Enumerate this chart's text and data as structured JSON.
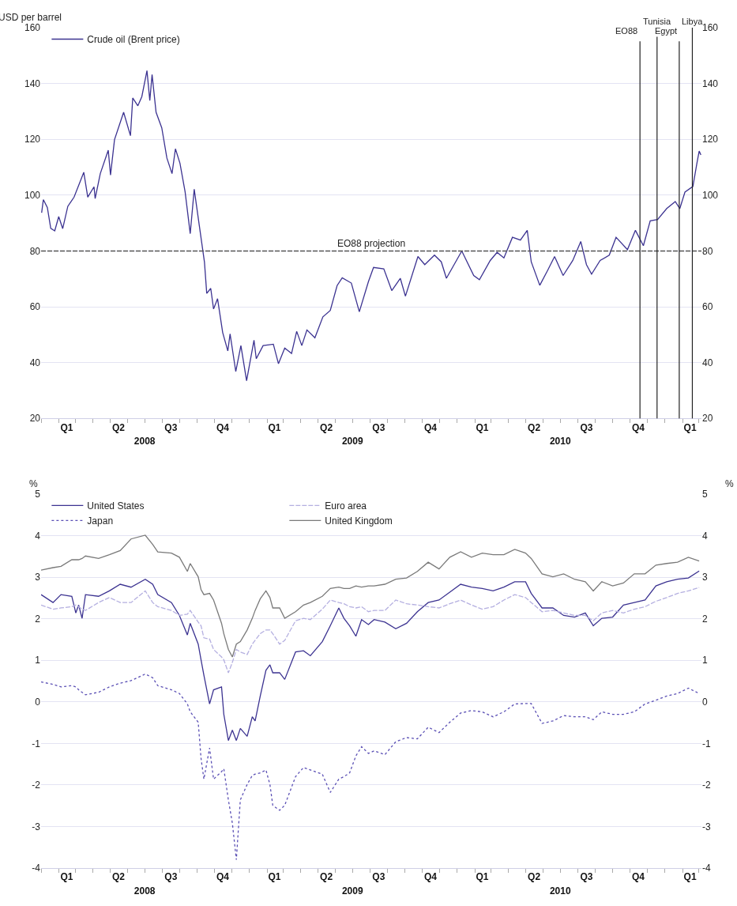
{
  "chart_data": [
    {
      "type": "line",
      "ylabel": "USD per barrel",
      "x": [
        "2008-01-02",
        "2008-01-05",
        "2008-01-12",
        "2008-01-18",
        "2008-01-25",
        "2008-02-01",
        "2008-02-08",
        "2008-02-17",
        "2008-02-28",
        "2008-03-16",
        "2008-03-23",
        "2008-04-03",
        "2008-04-05",
        "2008-04-14",
        "2008-04-28",
        "2008-05-02",
        "2008-05-09",
        "2008-05-25",
        "2008-06-06",
        "2008-06-10",
        "2008-06-19",
        "2008-06-26",
        "2008-07-05",
        "2008-07-10",
        "2008-07-14",
        "2008-07-21",
        "2008-07-31",
        "2008-08-09",
        "2008-08-18",
        "2008-08-24",
        "2008-09-01",
        "2008-09-10",
        "2008-09-19",
        "2008-09-26",
        "2008-10-05",
        "2008-10-14",
        "2008-10-18",
        "2008-10-25",
        "2008-10-30",
        "2008-11-06",
        "2008-11-15",
        "2008-11-24",
        "2008-11-28",
        "2008-12-08",
        "2008-12-17",
        "2008-12-27",
        "2009-01-09",
        "2009-01-13",
        "2009-01-25",
        "2009-02-12",
        "2009-02-21",
        "2009-03-04",
        "2009-03-16",
        "2009-03-25",
        "2009-04-03",
        "2009-04-12",
        "2009-04-26",
        "2009-05-10",
        "2009-05-23",
        "2009-06-04",
        "2009-06-13",
        "2009-06-29",
        "2009-07-13",
        "2009-07-29",
        "2009-08-07",
        "2009-08-25",
        "2009-09-08",
        "2009-09-23",
        "2009-10-02",
        "2009-10-24",
        "2009-11-05",
        "2009-11-22",
        "2009-12-04",
        "2009-12-13",
        "2010-01-09",
        "2010-01-30",
        "2010-02-09",
        "2010-02-28",
        "2010-03-12",
        "2010-03-24",
        "2010-04-08",
        "2010-04-22",
        "2010-05-04",
        "2010-05-11",
        "2010-05-26",
        "2010-06-09",
        "2010-06-21",
        "2010-07-06",
        "2010-07-23",
        "2010-08-06",
        "2010-08-16",
        "2010-08-25",
        "2010-09-09",
        "2010-09-25",
        "2010-10-07",
        "2010-10-27",
        "2010-11-10",
        "2010-11-24",
        "2010-12-06",
        "2010-12-19",
        "2011-01-04",
        "2011-01-19",
        "2011-01-27",
        "2011-02-05",
        "2011-02-19",
        "2011-02-26",
        "2011-03-02",
        "2011-03-05"
      ],
      "series": [
        {
          "name": "Crude oil (Brent price)",
          "color": "#3c3391",
          "line_style": "solid",
          "values": [
            93.7,
            98.4,
            95.6,
            88.1,
            87.2,
            92.3,
            88.0,
            96.0,
            99.3,
            108.2,
            99.3,
            103.0,
            98.8,
            107.7,
            116.1,
            107.2,
            119.9,
            129.7,
            121.3,
            134.8,
            132.0,
            135.3,
            144.6,
            133.9,
            143.2,
            129.7,
            124.1,
            113.3,
            107.7,
            116.6,
            111.4,
            101.2,
            86.2,
            102.1,
            89.0,
            76.0,
            64.8,
            66.6,
            59.2,
            62.9,
            50.8,
            44.2,
            50.3,
            36.8,
            46.1,
            33.5,
            48.0,
            41.4,
            46.1,
            46.6,
            39.6,
            45.2,
            43.3,
            51.2,
            46.1,
            51.7,
            48.9,
            56.4,
            58.7,
            67.6,
            70.4,
            68.5,
            58.2,
            69.0,
            74.1,
            73.6,
            65.8,
            70.2,
            63.8,
            78.0,
            75.1,
            78.5,
            76.1,
            70.2,
            80.0,
            71.2,
            69.7,
            76.6,
            79.5,
            77.5,
            84.9,
            83.9,
            87.4,
            76.1,
            67.7,
            73.1,
            78.0,
            71.2,
            76.6,
            83.4,
            75.1,
            71.7,
            76.6,
            78.5,
            84.9,
            80.5,
            87.4,
            81.9,
            90.8,
            91.3,
            95.2,
            97.7,
            95.2,
            101.1,
            103.1,
            111.4,
            115.8,
            114.4
          ]
        }
      ],
      "xlim": [
        "2008-01-01",
        "2011-03-06"
      ],
      "xticks": [
        {
          "value": "2008-02-15",
          "label": "Q1"
        },
        {
          "value": "2008-05-16",
          "label": "Q2"
        },
        {
          "value": "2008-08-16",
          "label": "Q3"
        },
        {
          "value": "2008-11-15",
          "label": "Q4"
        },
        {
          "value": "2009-02-14",
          "label": "Q1"
        },
        {
          "value": "2009-05-16",
          "label": "Q2"
        },
        {
          "value": "2009-08-16",
          "label": "Q3"
        },
        {
          "value": "2009-11-15",
          "label": "Q4"
        },
        {
          "value": "2010-02-14",
          "label": "Q1"
        },
        {
          "value": "2010-05-16",
          "label": "Q2"
        },
        {
          "value": "2010-08-16",
          "label": "Q3"
        },
        {
          "value": "2010-11-15",
          "label": "Q4"
        },
        {
          "value": "2011-02-14",
          "label": "Q1"
        }
      ],
      "x2lim": [
        "2008-01-01",
        "2011-03-06"
      ],
      "x2ticks": [
        {
          "value": "2008-07-01",
          "label": "2008"
        },
        {
          "value": "2009-07-01",
          "label": "2009"
        },
        {
          "value": "2010-07-01",
          "label": "2010"
        }
      ],
      "ylim": [
        20,
        160
      ],
      "yticks": [
        20,
        40,
        60,
        80,
        100,
        120,
        140,
        160
      ],
      "y2lim": [
        20,
        160
      ],
      "y2ticks": [
        20,
        40,
        60,
        80,
        100,
        120,
        140,
        160
      ],
      "ref_lines": [
        {
          "axis": "y",
          "value": 80,
          "label": "EO88 projection",
          "color": "#555555",
          "line_style": "dashed"
        },
        {
          "axis": "x",
          "value": "2010-11-18",
          "label": "EO88",
          "color": "#222222",
          "line_style": "solid"
        },
        {
          "axis": "x",
          "value": "2010-12-18",
          "label": "Tunisia",
          "color": "#222222",
          "line_style": "solid"
        },
        {
          "axis": "x",
          "value": "2011-01-26",
          "label": "Egypt",
          "color": "#222222",
          "line_style": "solid"
        },
        {
          "axis": "x",
          "value": "2011-02-18",
          "label": "Libya",
          "color": "#222222",
          "line_style": "solid"
        }
      ],
      "grid": "y",
      "legend": "top left"
    },
    {
      "type": "line",
      "ylabel": "%",
      "y2label": "%",
      "x": [
        "2008-01-01",
        "2008-01-22",
        "2008-02-05",
        "2008-02-24",
        "2008-03-02",
        "2008-03-07",
        "2008-03-13",
        "2008-03-19",
        "2008-04-11",
        "2008-04-30",
        "2008-05-19",
        "2008-06-07",
        "2008-07-02",
        "2008-07-15",
        "2008-07-24",
        "2008-08-17",
        "2008-08-31",
        "2008-09-14",
        "2008-09-19",
        "2008-10-03",
        "2008-10-08",
        "2008-10-13",
        "2008-10-23",
        "2008-10-30",
        "2008-11-13",
        "2008-11-17",
        "2008-11-25",
        "2008-12-02",
        "2008-12-09",
        "2008-12-16",
        "2008-12-28",
        "2009-01-06",
        "2009-01-11",
        "2009-01-20",
        "2009-01-30",
        "2009-02-06",
        "2009-02-11",
        "2009-02-23",
        "2009-03-04",
        "2009-03-23",
        "2009-04-06",
        "2009-04-18",
        "2009-05-09",
        "2009-05-23",
        "2009-06-07",
        "2009-06-16",
        "2009-06-26",
        "2009-07-07",
        "2009-07-17",
        "2009-07-29",
        "2009-08-08",
        "2009-08-27",
        "2009-09-15",
        "2009-10-04",
        "2009-10-23",
        "2009-11-11",
        "2009-11-30",
        "2009-12-19",
        "2010-01-07",
        "2010-01-26",
        "2010-02-14",
        "2010-03-05",
        "2010-03-24",
        "2010-04-12",
        "2010-05-01",
        "2010-05-11",
        "2010-05-30",
        "2010-06-18",
        "2010-07-07",
        "2010-07-26",
        "2010-08-14",
        "2010-08-28",
        "2010-09-12",
        "2010-10-01",
        "2010-10-20",
        "2010-11-08",
        "2010-11-27",
        "2010-12-16",
        "2011-01-04",
        "2011-01-23",
        "2011-02-11",
        "2011-03-02"
      ],
      "series": [
        {
          "name": "United States",
          "color": "#3c3391",
          "line_style": "solid",
          "values": [
            2.58,
            2.39,
            2.58,
            2.54,
            2.14,
            2.33,
            2.01,
            2.58,
            2.54,
            2.67,
            2.83,
            2.76,
            2.95,
            2.83,
            2.58,
            2.39,
            2.08,
            1.61,
            1.89,
            1.39,
            1.01,
            0.64,
            -0.05,
            0.29,
            0.36,
            -0.3,
            -0.93,
            -0.68,
            -0.93,
            -0.64,
            -0.83,
            -0.36,
            -0.46,
            0.14,
            0.76,
            0.89,
            0.7,
            0.7,
            0.54,
            1.2,
            1.23,
            1.11,
            1.45,
            1.83,
            2.26,
            2.01,
            1.83,
            1.58,
            1.98,
            1.86,
            1.98,
            1.92,
            1.76,
            1.89,
            2.17,
            2.39,
            2.45,
            2.64,
            2.83,
            2.76,
            2.73,
            2.67,
            2.76,
            2.89,
            2.89,
            2.61,
            2.26,
            2.26,
            2.08,
            2.04,
            2.14,
            1.83,
            2.01,
            2.04,
            2.33,
            2.39,
            2.45,
            2.79,
            2.89,
            2.95,
            2.98,
            3.15
          ]
        },
        {
          "name": "Euro area",
          "color": "#b4afe0",
          "line_style": "dashed",
          "values": [
            2.33,
            2.23,
            2.26,
            2.29,
            2.33,
            2.29,
            2.23,
            2.2,
            2.39,
            2.51,
            2.39,
            2.39,
            2.67,
            2.39,
            2.29,
            2.2,
            2.08,
            2.11,
            2.2,
            1.92,
            1.83,
            1.54,
            1.51,
            1.26,
            1.08,
            1.01,
            0.7,
            0.95,
            1.26,
            1.2,
            1.14,
            1.39,
            1.48,
            1.64,
            1.73,
            1.73,
            1.64,
            1.39,
            1.48,
            1.95,
            2.01,
            1.98,
            2.23,
            2.45,
            2.39,
            2.36,
            2.29,
            2.26,
            2.29,
            2.17,
            2.2,
            2.2,
            2.45,
            2.36,
            2.33,
            2.29,
            2.26,
            2.36,
            2.45,
            2.33,
            2.23,
            2.29,
            2.45,
            2.58,
            2.51,
            2.39,
            2.17,
            2.2,
            2.14,
            2.08,
            2.08,
            1.95,
            2.14,
            2.2,
            2.14,
            2.23,
            2.29,
            2.42,
            2.51,
            2.61,
            2.67,
            2.75
          ]
        },
        {
          "name": "Japan",
          "color": "#5b50b5",
          "line_style": "dotted",
          "values": [
            0.48,
            0.42,
            0.36,
            0.39,
            0.36,
            0.29,
            0.23,
            0.17,
            0.23,
            0.36,
            0.45,
            0.51,
            0.67,
            0.58,
            0.39,
            0.29,
            0.2,
            -0.05,
            -0.24,
            -0.49,
            -1.36,
            -1.86,
            -1.11,
            -1.86,
            -1.68,
            -1.61,
            -2.36,
            -2.92,
            -3.8,
            -2.36,
            -1.99,
            -1.77,
            -1.74,
            -1.71,
            -1.64,
            -1.99,
            -2.49,
            -2.61,
            -2.49,
            -1.8,
            -1.58,
            -1.64,
            -1.74,
            -2.18,
            -1.86,
            -1.8,
            -1.71,
            -1.3,
            -1.08,
            -1.24,
            -1.18,
            -1.27,
            -0.96,
            -0.86,
            -0.89,
            -0.61,
            -0.74,
            -0.49,
            -0.27,
            -0.21,
            -0.24,
            -0.36,
            -0.24,
            -0.05,
            -0.04,
            -0.04,
            -0.52,
            -0.46,
            -0.33,
            -0.36,
            -0.36,
            -0.43,
            -0.24,
            -0.3,
            -0.3,
            -0.24,
            -0.05,
            0.04,
            0.14,
            0.2,
            0.33,
            0.2
          ]
        },
        {
          "name": "United Kingdom",
          "color": "#7a7a7a",
          "line_style": "solid",
          "values": [
            3.17,
            3.23,
            3.26,
            3.42,
            3.42,
            3.42,
            3.45,
            3.51,
            3.45,
            3.54,
            3.64,
            3.92,
            4.01,
            3.79,
            3.61,
            3.58,
            3.48,
            3.14,
            3.33,
            3.01,
            2.7,
            2.58,
            2.61,
            2.45,
            1.89,
            1.64,
            1.26,
            1.08,
            1.39,
            1.45,
            1.73,
            2.01,
            2.2,
            2.48,
            2.67,
            2.51,
            2.26,
            2.26,
            2.01,
            2.17,
            2.33,
            2.39,
            2.54,
            2.73,
            2.76,
            2.73,
            2.73,
            2.79,
            2.76,
            2.79,
            2.79,
            2.83,
            2.95,
            2.98,
            3.14,
            3.36,
            3.2,
            3.48,
            3.61,
            3.48,
            3.58,
            3.54,
            3.54,
            3.67,
            3.58,
            3.45,
            3.08,
            3.01,
            3.08,
            2.95,
            2.89,
            2.67,
            2.89,
            2.79,
            2.86,
            3.08,
            3.08,
            3.29,
            3.33,
            3.36,
            3.48,
            3.39
          ]
        }
      ],
      "xlim": [
        "2008-01-01",
        "2011-03-06"
      ],
      "xticks": [
        {
          "value": "2008-02-15",
          "label": "Q1"
        },
        {
          "value": "2008-05-16",
          "label": "Q2"
        },
        {
          "value": "2008-08-16",
          "label": "Q3"
        },
        {
          "value": "2008-11-15",
          "label": "Q4"
        },
        {
          "value": "2009-02-14",
          "label": "Q1"
        },
        {
          "value": "2009-05-16",
          "label": "Q2"
        },
        {
          "value": "2009-08-16",
          "label": "Q3"
        },
        {
          "value": "2009-11-15",
          "label": "Q4"
        },
        {
          "value": "2010-02-14",
          "label": "Q1"
        },
        {
          "value": "2010-05-16",
          "label": "Q2"
        },
        {
          "value": "2010-08-16",
          "label": "Q3"
        },
        {
          "value": "2010-11-15",
          "label": "Q4"
        },
        {
          "value": "2011-02-14",
          "label": "Q1"
        }
      ],
      "x2lim": [
        "2008-01-01",
        "2011-03-06"
      ],
      "x2ticks": [
        {
          "value": "2008-07-01",
          "label": "2008"
        },
        {
          "value": "2009-07-01",
          "label": "2009"
        },
        {
          "value": "2010-07-01",
          "label": "2010"
        }
      ],
      "ylim": [
        -4,
        5
      ],
      "yticks": [
        -4,
        -3,
        -2,
        -1,
        0,
        1,
        2,
        3,
        4,
        5
      ],
      "y2lim": [
        -4,
        5
      ],
      "y2ticks": [
        -4,
        -3,
        -2,
        -1,
        0,
        1,
        2,
        3,
        4,
        5
      ],
      "grid": "y",
      "legend": "top left"
    }
  ]
}
